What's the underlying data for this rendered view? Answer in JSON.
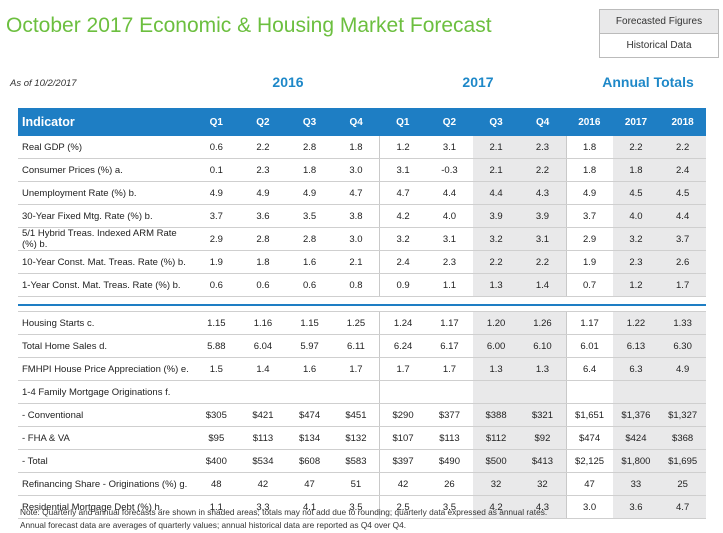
{
  "title": "October 2017 Economic & Housing Market Forecast",
  "legend": {
    "forecasted": "Forecasted Figures",
    "historical": "Historical Data"
  },
  "as_of": "As of 10/2/2017",
  "groups": {
    "y2016": "2016",
    "y2017": "2017",
    "annual": "Annual Totals"
  },
  "columns": [
    "Indicator",
    "Q1",
    "Q2",
    "Q3",
    "Q4",
    "Q1",
    "Q2",
    "Q3",
    "Q4",
    "2016",
    "2017",
    "2018"
  ],
  "section1": [
    [
      "Real GDP (%)",
      "0.6",
      "2.2",
      "2.8",
      "1.8",
      "1.2",
      "3.1",
      "2.1",
      "2.3",
      "1.8",
      "2.2",
      "2.2"
    ],
    [
      "Consumer Prices (%) a.",
      "0.1",
      "2.3",
      "1.8",
      "3.0",
      "3.1",
      "-0.3",
      "2.1",
      "2.2",
      "1.8",
      "1.8",
      "2.4"
    ],
    [
      "Unemployment Rate (%) b.",
      "4.9",
      "4.9",
      "4.9",
      "4.7",
      "4.7",
      "4.4",
      "4.4",
      "4.3",
      "4.9",
      "4.5",
      "4.5"
    ],
    [
      "30-Year Fixed Mtg. Rate (%) b.",
      "3.7",
      "3.6",
      "3.5",
      "3.8",
      "4.2",
      "4.0",
      "3.9",
      "3.9",
      "3.7",
      "4.0",
      "4.4"
    ],
    [
      "5/1 Hybrid Treas. Indexed ARM Rate (%) b.",
      "2.9",
      "2.8",
      "2.8",
      "3.0",
      "3.2",
      "3.1",
      "3.2",
      "3.1",
      "2.9",
      "3.2",
      "3.7"
    ],
    [
      "10-Year Const. Mat. Treas. Rate (%) b.",
      "1.9",
      "1.8",
      "1.6",
      "2.1",
      "2.4",
      "2.3",
      "2.2",
      "2.2",
      "1.9",
      "2.3",
      "2.6"
    ],
    [
      "1-Year Const. Mat. Treas. Rate (%) b.",
      "0.6",
      "0.6",
      "0.6",
      "0.8",
      "0.9",
      "1.1",
      "1.3",
      "1.4",
      "0.7",
      "1.2",
      "1.7"
    ]
  ],
  "section2": [
    [
      "Housing Starts c.",
      "1.15",
      "1.16",
      "1.15",
      "1.25",
      "1.24",
      "1.17",
      "1.20",
      "1.26",
      "1.17",
      "1.22",
      "1.33"
    ],
    [
      "Total Home Sales d.",
      "5.88",
      "6.04",
      "5.97",
      "6.11",
      "6.24",
      "6.17",
      "6.00",
      "6.10",
      "6.01",
      "6.13",
      "6.30"
    ],
    [
      "FMHPI House Price Appreciation (%) e.",
      "1.5",
      "1.4",
      "1.6",
      "1.7",
      "1.7",
      "1.7",
      "1.3",
      "1.3",
      "6.4",
      "6.3",
      "4.9"
    ],
    [
      "1-4 Family Mortgage Originations f.",
      "",
      "",
      "",
      "",
      "",
      "",
      "",
      "",
      "",
      "",
      ""
    ],
    [
      " - Conventional",
      "$305",
      "$421",
      "$474",
      "$451",
      "$290",
      "$377",
      "$388",
      "$321",
      "$1,651",
      "$1,376",
      "$1,327"
    ],
    [
      " - FHA & VA",
      "$95",
      "$113",
      "$134",
      "$132",
      "$107",
      "$113",
      "$112",
      "$92",
      "$474",
      "$424",
      "$368"
    ],
    [
      " - Total",
      "$400",
      "$534",
      "$608",
      "$583",
      "$397",
      "$490",
      "$500",
      "$413",
      "$2,125",
      "$1,800",
      "$1,695"
    ],
    [
      "Refinancing Share - Originations (%) g.",
      "48",
      "42",
      "47",
      "51",
      "42",
      "26",
      "32",
      "32",
      "47",
      "33",
      "25"
    ],
    [
      "Residential Mortgage Debt (%) h.",
      "1.1",
      "3.3",
      "4.1",
      "3.5",
      "2.5",
      "3.5",
      "4.2",
      "4.3",
      "3.0",
      "3.6",
      "4.7"
    ]
  ],
  "notes": [
    "Note: Quarterly and annual forecasts are shown in shaded areas; totals may not add due to rounding; quarterly data expressed as annual rates.",
    "Annual forecast data are averages of quarterly values; annual historical data are reported as Q4 over Q4."
  ]
}
